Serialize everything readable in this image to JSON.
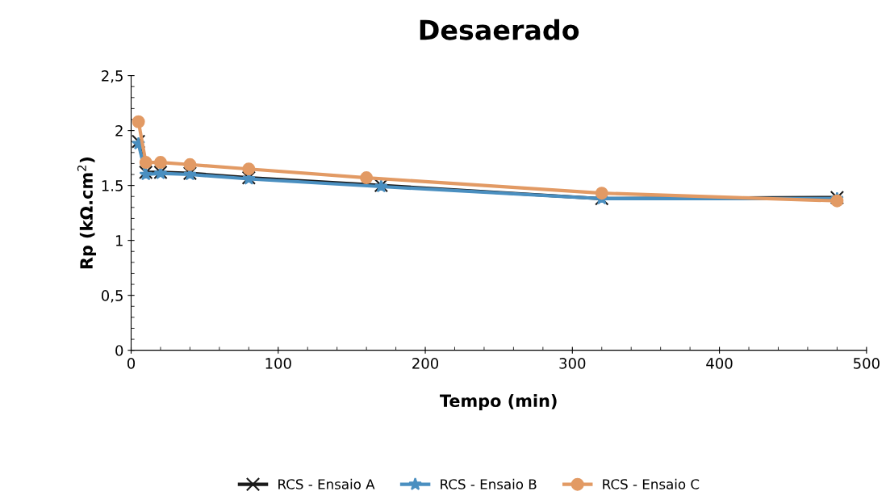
{
  "chart_data": {
    "type": "line",
    "title": "Desaerado",
    "xlabel": "Tempo (min)",
    "ylabel": "Rp (kΩ.cm$^{2}$)",
    "xlim": [
      0,
      500
    ],
    "xticks": [
      0,
      100,
      200,
      300,
      400,
      500
    ],
    "ylim": [
      0,
      2.5
    ],
    "yticks": [
      {
        "value": 0,
        "label": "0"
      },
      {
        "value": 0.5,
        "label": "0,5"
      },
      {
        "value": 1,
        "label": "1"
      },
      {
        "value": 1.5,
        "label": "1.5"
      },
      {
        "value": 2,
        "label": "2"
      },
      {
        "value": 2.5,
        "label": "2,5"
      }
    ],
    "grid": false,
    "legend": "bottom",
    "line_style": "solid",
    "series": [
      {
        "name": "RCS - Ensaio A",
        "color": "#1a1a1a",
        "marker": "cross",
        "x": [
          5,
          10,
          20,
          40,
          80,
          170,
          320,
          480
        ],
        "values": [
          1.9,
          1.62,
          1.62,
          1.61,
          1.57,
          1.5,
          1.38,
          1.39
        ]
      },
      {
        "name": "RCS - Ensaio B",
        "color": "#4a8fc0",
        "marker": "star",
        "x": [
          5,
          10,
          20,
          40,
          80,
          170,
          320,
          480
        ],
        "values": [
          1.88,
          1.6,
          1.61,
          1.6,
          1.56,
          1.49,
          1.38,
          1.38
        ]
      },
      {
        "name": "RCS - Ensaio C",
        "color": "#e29a64",
        "marker": "circle",
        "x": [
          5,
          10,
          20,
          40,
          80,
          160,
          320,
          480
        ],
        "values": [
          2.08,
          1.71,
          1.71,
          1.69,
          1.65,
          1.57,
          1.43,
          1.36
        ]
      }
    ]
  }
}
